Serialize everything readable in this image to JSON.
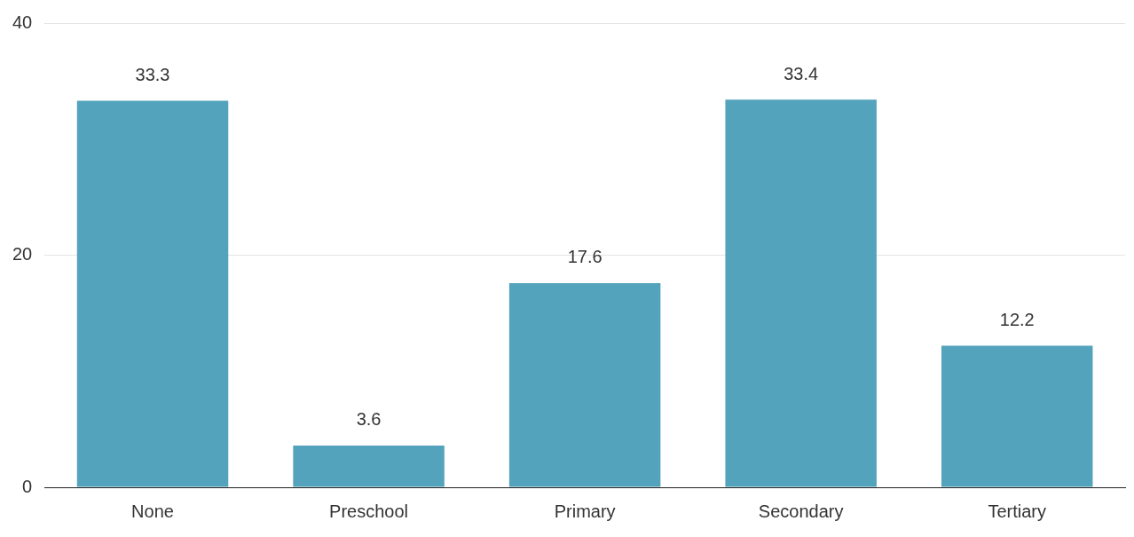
{
  "chart_data": {
    "type": "bar",
    "categories": [
      "None",
      "Preschool",
      "Primary",
      "Secondary",
      "Tertiary"
    ],
    "values": [
      33.3,
      3.6,
      17.6,
      33.4,
      12.2
    ],
    "color": "#54a3bd",
    "ylim": [
      0,
      40
    ],
    "yticks": [
      0,
      20,
      40
    ],
    "grid": "y",
    "data_labels": true,
    "legend": false
  }
}
